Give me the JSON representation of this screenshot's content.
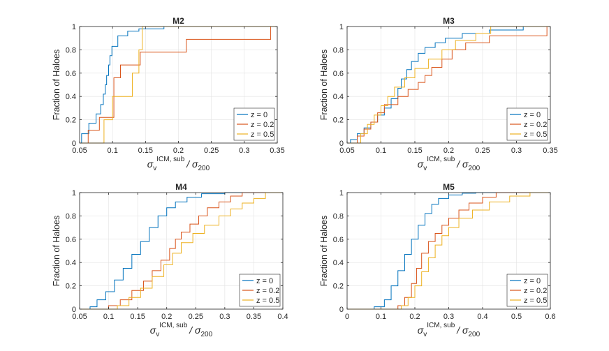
{
  "chart_data": [
    {
      "type": "line",
      "title": "M2",
      "ylabel": "Fraction of Haloes",
      "xlabel": {
        "symbol": "σ",
        "sub": "v",
        "sup": "ICM, sub",
        "rest": "/ σ",
        "rest_sub": "200"
      },
      "xlim": [
        0.05,
        0.35
      ],
      "ylim": [
        0,
        1
      ],
      "xticks": [
        "0.05",
        "0.1",
        "0.15",
        "0.2",
        "0.25",
        "0.3",
        "0.35"
      ],
      "xtick_values": [
        0.05,
        0.1,
        0.15,
        0.2,
        0.25,
        0.3,
        0.35
      ],
      "yticks": [
        "0",
        "0.2",
        "0.4",
        "0.6",
        "0.8",
        "1"
      ],
      "ytick_values": [
        0,
        0.2,
        0.4,
        0.6,
        0.8,
        1
      ],
      "grid": true,
      "legend": "bottom-right",
      "series": [
        {
          "name": "z = 0",
          "color": "#0072BD",
          "x": [
            0.053,
            0.064,
            0.075,
            0.082,
            0.086,
            0.089,
            0.091,
            0.094,
            0.096,
            0.099,
            0.108,
            0.123,
            0.14,
            0.178
          ],
          "y": [
            0.08,
            0.17,
            0.25,
            0.33,
            0.42,
            0.5,
            0.58,
            0.67,
            0.75,
            0.83,
            0.92,
            0.96,
            0.98,
            1.0
          ]
        },
        {
          "name": "z = 0.2",
          "color": "#D95319",
          "x": [
            0.063,
            0.08,
            0.102,
            0.112,
            0.142,
            0.212,
            0.34
          ],
          "y": [
            0.11,
            0.22,
            0.56,
            0.67,
            0.78,
            0.89,
            1.0
          ]
        },
        {
          "name": "z = 0.5",
          "color": "#EDB120",
          "x": [
            0.087,
            0.1,
            0.13,
            0.14,
            0.145
          ],
          "y": [
            0.2,
            0.4,
            0.6,
            0.8,
            1.0
          ]
        }
      ]
    },
    {
      "type": "line",
      "title": "M3",
      "ylabel": "Fraction of Haloes",
      "xlabel": {
        "symbol": "σ",
        "sub": "v",
        "sup": "ICM, sub",
        "rest": "/ σ",
        "rest_sub": "200"
      },
      "xlim": [
        0.05,
        0.35
      ],
      "ylim": [
        0,
        1
      ],
      "xticks": [
        "0.05",
        "0.1",
        "0.15",
        "0.2",
        "0.25",
        "0.3",
        "0.35"
      ],
      "xtick_values": [
        0.05,
        0.1,
        0.15,
        0.2,
        0.25,
        0.3,
        0.35
      ],
      "yticks": [
        "0",
        "0.2",
        "0.4",
        "0.6",
        "0.8",
        "1"
      ],
      "ytick_values": [
        0,
        0.2,
        0.4,
        0.6,
        0.8,
        1
      ],
      "grid": true,
      "legend": "bottom-right",
      "series": [
        {
          "name": "z = 0",
          "color": "#0072BD",
          "x": [
            0.055,
            0.065,
            0.075,
            0.085,
            0.095,
            0.105,
            0.115,
            0.125,
            0.13,
            0.138,
            0.145,
            0.155,
            0.165,
            0.18,
            0.195,
            0.22,
            0.26,
            0.31
          ],
          "y": [
            0.03,
            0.08,
            0.13,
            0.18,
            0.24,
            0.3,
            0.38,
            0.47,
            0.55,
            0.63,
            0.7,
            0.77,
            0.82,
            0.86,
            0.9,
            0.94,
            0.97,
            1.0
          ]
        },
        {
          "name": "z = 0.2",
          "color": "#D95319",
          "x": [
            0.065,
            0.075,
            0.085,
            0.095,
            0.105,
            0.125,
            0.14,
            0.155,
            0.165,
            0.175,
            0.19,
            0.205,
            0.225,
            0.26,
            0.345
          ],
          "y": [
            0.06,
            0.12,
            0.18,
            0.26,
            0.33,
            0.4,
            0.46,
            0.52,
            0.58,
            0.65,
            0.72,
            0.8,
            0.86,
            0.92,
            1.0
          ]
        },
        {
          "name": "z = 0.5",
          "color": "#EDB120",
          "x": [
            0.07,
            0.08,
            0.09,
            0.1,
            0.11,
            0.12,
            0.135,
            0.15,
            0.17,
            0.19,
            0.21,
            0.24,
            0.262
          ],
          "y": [
            0.08,
            0.16,
            0.24,
            0.32,
            0.4,
            0.48,
            0.56,
            0.64,
            0.72,
            0.8,
            0.88,
            0.94,
            1.0
          ]
        }
      ]
    },
    {
      "type": "line",
      "title": "M4",
      "ylabel": "Fraction of Haloes",
      "xlabel": {
        "symbol": "σ",
        "sub": "v",
        "sup": "ICM, sub",
        "rest": "/ σ",
        "rest_sub": "200"
      },
      "xlim": [
        0.05,
        0.4
      ],
      "ylim": [
        0,
        1
      ],
      "xticks": [
        "0.05",
        "0.1",
        "0.15",
        "0.2",
        "0.25",
        "0.3",
        "0.35",
        "0.4"
      ],
      "xtick_values": [
        0.05,
        0.1,
        0.15,
        0.2,
        0.25,
        0.3,
        0.35,
        0.4
      ],
      "yticks": [
        "0",
        "0.2",
        "0.4",
        "0.6",
        "0.8",
        "1"
      ],
      "ytick_values": [
        0,
        0.2,
        0.4,
        0.6,
        0.8,
        1
      ],
      "grid": true,
      "legend": "bottom-right",
      "series": [
        {
          "name": "z = 0",
          "color": "#0072BD",
          "x": [
            0.068,
            0.08,
            0.095,
            0.11,
            0.125,
            0.14,
            0.155,
            0.17,
            0.185,
            0.2,
            0.215,
            0.235,
            0.26,
            0.3
          ],
          "y": [
            0.02,
            0.08,
            0.15,
            0.25,
            0.35,
            0.47,
            0.58,
            0.7,
            0.8,
            0.87,
            0.92,
            0.96,
            0.99,
            1.0
          ]
        },
        {
          "name": "z = 0.2",
          "color": "#D95319",
          "x": [
            0.1,
            0.12,
            0.14,
            0.16,
            0.175,
            0.19,
            0.205,
            0.215,
            0.225,
            0.24,
            0.255,
            0.27,
            0.29,
            0.31,
            0.33
          ],
          "y": [
            0.03,
            0.08,
            0.16,
            0.24,
            0.33,
            0.42,
            0.52,
            0.6,
            0.66,
            0.73,
            0.8,
            0.87,
            0.92,
            0.97,
            1.0
          ]
        },
        {
          "name": "z = 0.5",
          "color": "#EDB120",
          "x": [
            0.115,
            0.135,
            0.155,
            0.175,
            0.195,
            0.21,
            0.225,
            0.245,
            0.265,
            0.29,
            0.31,
            0.33,
            0.35,
            0.37
          ],
          "y": [
            0.03,
            0.1,
            0.18,
            0.28,
            0.38,
            0.48,
            0.57,
            0.65,
            0.72,
            0.8,
            0.86,
            0.91,
            0.95,
            1.0
          ]
        }
      ]
    },
    {
      "type": "line",
      "title": "M5",
      "ylabel": "Fraction of Haloes",
      "xlabel": {
        "symbol": "σ",
        "sub": "v",
        "sup": "ICM, sub",
        "rest": "/ σ",
        "rest_sub": "200"
      },
      "xlim": [
        0,
        0.6
      ],
      "ylim": [
        0,
        1
      ],
      "xticks": [
        "0",
        "0.1",
        "0.2",
        "0.3",
        "0.4",
        "0.5",
        "0.6"
      ],
      "xtick_values": [
        0,
        0.1,
        0.2,
        0.3,
        0.4,
        0.5,
        0.6
      ],
      "yticks": [
        "0",
        "0.2",
        "0.4",
        "0.6",
        "0.8",
        "1"
      ],
      "ytick_values": [
        0,
        0.2,
        0.4,
        0.6,
        0.8,
        1
      ],
      "grid": true,
      "legend": "bottom-right",
      "series": [
        {
          "name": "z = 0",
          "color": "#0072BD",
          "x": [
            0.08,
            0.11,
            0.13,
            0.15,
            0.17,
            0.19,
            0.21,
            0.23,
            0.25,
            0.27,
            0.3,
            0.34,
            0.38
          ],
          "y": [
            0.02,
            0.08,
            0.2,
            0.33,
            0.47,
            0.6,
            0.72,
            0.82,
            0.9,
            0.95,
            0.98,
            0.995,
            1.0
          ]
        },
        {
          "name": "z = 0.2",
          "color": "#D95319",
          "x": [
            0.15,
            0.17,
            0.19,
            0.205,
            0.22,
            0.24,
            0.26,
            0.28,
            0.3,
            0.33,
            0.36,
            0.4,
            0.44
          ],
          "y": [
            0.03,
            0.1,
            0.22,
            0.35,
            0.48,
            0.58,
            0.65,
            0.72,
            0.78,
            0.85,
            0.91,
            0.96,
            1.0
          ]
        },
        {
          "name": "z = 0.5",
          "color": "#EDB120",
          "x": [
            0.16,
            0.18,
            0.2,
            0.22,
            0.24,
            0.26,
            0.28,
            0.3,
            0.33,
            0.37,
            0.42,
            0.48,
            0.54
          ],
          "y": [
            0.03,
            0.1,
            0.2,
            0.32,
            0.44,
            0.55,
            0.63,
            0.7,
            0.78,
            0.85,
            0.92,
            0.97,
            1.0
          ]
        }
      ]
    }
  ]
}
